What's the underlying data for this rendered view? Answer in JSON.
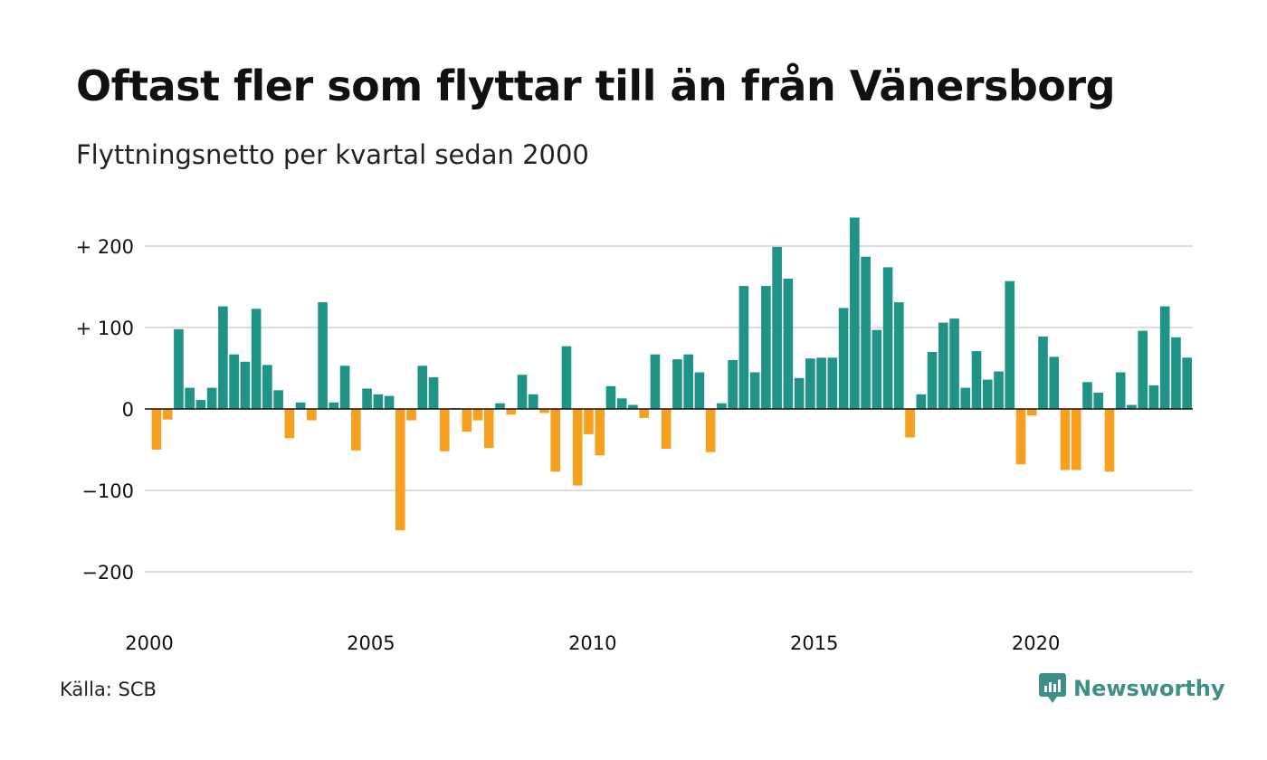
{
  "title": "Oftast fler som flyttar till än från Vänersborg",
  "subtitle": "Flyttningsnetto per kvartal sedan 2000",
  "source": "Källa: SCB",
  "brand": "Newsworthy",
  "colors": {
    "positive": "#1f9486",
    "negative": "#f6a020",
    "grid": "#dddddd",
    "logo": "#3e8f85"
  },
  "chart_data": {
    "type": "bar",
    "x_start": "2000 Q1",
    "x_ticks": [
      "2000",
      "2005",
      "2010",
      "2015",
      "2020"
    ],
    "y_ticks": [
      {
        "value": 200,
        "label": "+ 200"
      },
      {
        "value": 100,
        "label": "+ 100"
      },
      {
        "value": 0,
        "label": "0"
      },
      {
        "value": -100,
        "label": "−100"
      },
      {
        "value": -200,
        "label": "−200"
      }
    ],
    "ylim": [
      -235,
      240
    ],
    "grid": true,
    "values": [
      -50,
      -13,
      98,
      26,
      11,
      26,
      126,
      67,
      58,
      123,
      54,
      23,
      -36,
      8,
      -14,
      131,
      8,
      53,
      -51,
      25,
      18,
      16,
      -149,
      -14,
      53,
      39,
      -52,
      1,
      -28,
      -14,
      -48,
      7,
      -7,
      42,
      18,
      -5,
      -77,
      77,
      -94,
      -31,
      -57,
      28,
      13,
      5,
      -11,
      67,
      -49,
      61,
      67,
      45,
      -53,
      7,
      60,
      151,
      45,
      151,
      199,
      160,
      38,
      62,
      63,
      63,
      124,
      235,
      187,
      97,
      174,
      131,
      -35,
      18,
      70,
      106,
      111,
      26,
      71,
      36,
      46,
      157,
      -68,
      -8,
      89,
      64,
      -75,
      -75,
      33,
      20,
      -77,
      45,
      5,
      96,
      29,
      126,
      88,
      63
    ]
  }
}
